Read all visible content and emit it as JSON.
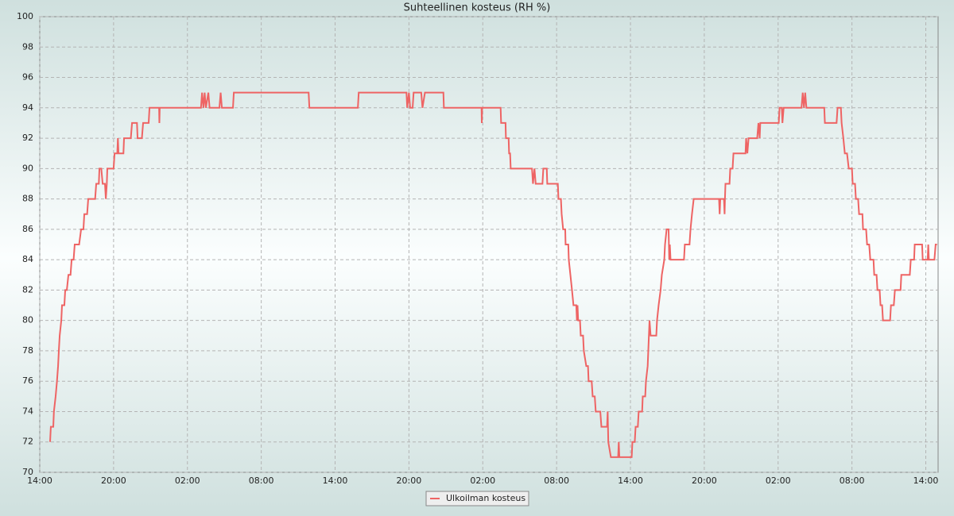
{
  "chart_data": {
    "type": "line",
    "title": "Suhteellinen kosteus (RH %)",
    "x": [
      0.84,
      0.9,
      1.1,
      1.15,
      1.29,
      1.4,
      1.49,
      1.55,
      1.62,
      1.75,
      1.81,
      2.0,
      2.07,
      2.2,
      2.33,
      2.5,
      2.59,
      2.75,
      2.84,
      3.2,
      3.36,
      3.55,
      3.62,
      3.85,
      3.94,
      4.5,
      4.59,
      4.8,
      4.85,
      5.0,
      5.11,
      5.3,
      5.37,
      5.45,
      5.49,
      6.0,
      6.08,
      6.3,
      6.35,
      6.4,
      6.8,
      6.85,
      7.4,
      7.5,
      7.9,
      7.95,
      8.3,
      8.4,
      8.85,
      8.92,
      9.7,
      9.72,
      9.75,
      13.1,
      13.19,
      13.3,
      13.4,
      13.5,
      13.7,
      13.8,
      14.6,
      14.7,
      14.8,
      15.7,
      15.77,
      21.85,
      21.91,
      25.85,
      25.92,
      29.8,
      29.86,
      30.0,
      30.1,
      30.3,
      30.38,
      31.0,
      31.1,
      31.3,
      32.8,
      32.84,
      35.9,
      35.92,
      35.95,
      37.45,
      37.49,
      37.85,
      37.88,
      38.1,
      38.14,
      38.22,
      38.27,
      40.0,
      40.08,
      40.2,
      40.3,
      40.85,
      40.92,
      41.2,
      41.24,
      42.1,
      42.15,
      42.35,
      42.41,
      42.53,
      42.7,
      42.73,
      42.95,
      42.99,
      43.12,
      43.25,
      43.37,
      43.6,
      43.65,
      43.7,
      43.75,
      43.9,
      43.96,
      44.15,
      44.21,
      44.41,
      44.55,
      44.6,
      44.85,
      44.93,
      45.1,
      45.18,
      45.55,
      45.64,
      46.1,
      46.15,
      46.2,
      46.41,
      47.0,
      47.05,
      47.1,
      48.1,
      48.16,
      48.35,
      48.42,
      48.6,
      48.67,
      48.95,
      49.0,
      49.2,
      49.26,
      49.4,
      49.45,
      49.55,
      49.64,
      50.1,
      50.16,
      50.29,
      50.45,
      50.55,
      50.75,
      50.81,
      50.94,
      51.1,
      51.15,
      51.2,
      51.26,
      52.35,
      52.42,
      52.8,
      52.88,
      53.0,
      53.14,
      55.2,
      55.25,
      55.3,
      55.6,
      55.65,
      55.68,
      55.72,
      56.05,
      56.11,
      56.3,
      56.37,
      57.35,
      57.4,
      57.5,
      57.6,
      58.3,
      58.4,
      58.5,
      58.55,
      60.05,
      60.12,
      60.3,
      60.35,
      60.45,
      61.9,
      62.0,
      62.1,
      62.2,
      62.3,
      63.75,
      63.8,
      64.75,
      64.83,
      65.1,
      65.16,
      65.3,
      65.42,
      65.6,
      65.74,
      66.0,
      66.06,
      66.25,
      66.32,
      66.5,
      66.58,
      66.85,
      66.9,
      67.15,
      67.23,
      67.4,
      67.49,
      67.75,
      67.81,
      68.0,
      68.07,
      68.25,
      68.32,
      68.45,
      68.52,
      69.1,
      69.17,
      69.4,
      69.49,
      69.95,
      70.01,
      70.7,
      70.78,
      71.05,
      71.1,
      71.7,
      71.75,
      72.15,
      72.2,
      72.25,
      72.7,
      72.8,
      72.91
    ],
    "series": [
      {
        "name": "Ulkoilman kosteus",
        "color": "#ee6464",
        "values": [
          72,
          73,
          73,
          74,
          75,
          76,
          77,
          78,
          79,
          80,
          81,
          81,
          82,
          82,
          83,
          83,
          84,
          84,
          85,
          85,
          86,
          86,
          87,
          87,
          88,
          88,
          89,
          89,
          90,
          90,
          89,
          89,
          88,
          89,
          90,
          90,
          91,
          91,
          92,
          91,
          91,
          92,
          92,
          93,
          93,
          92,
          92,
          93,
          93,
          94,
          94,
          93,
          94,
          94,
          95,
          94,
          95,
          94,
          95,
          94,
          94,
          95,
          94,
          94,
          95,
          95,
          94,
          94,
          95,
          95,
          94,
          95,
          94,
          94,
          95,
          95,
          94,
          95,
          95,
          94,
          94,
          93,
          94,
          94,
          93,
          93,
          92,
          92,
          91,
          91,
          90,
          90,
          89,
          90,
          89,
          89,
          90,
          90,
          89,
          89,
          88,
          88,
          87,
          86,
          86,
          85,
          85,
          84,
          83,
          82,
          81,
          81,
          80,
          81,
          80,
          80,
          79,
          79,
          78,
          77,
          77,
          76,
          76,
          75,
          75,
          74,
          74,
          73,
          73,
          74,
          72,
          71,
          71,
          72,
          71,
          71,
          72,
          72,
          73,
          73,
          74,
          74,
          75,
          75,
          76,
          77,
          78,
          80,
          79,
          79,
          80,
          81,
          82,
          83,
          84,
          85,
          86,
          86,
          84,
          85,
          84,
          84,
          85,
          85,
          86,
          87,
          88,
          88,
          87,
          88,
          88,
          87,
          88,
          89,
          89,
          90,
          90,
          91,
          91,
          92,
          91,
          92,
          92,
          93,
          92,
          93,
          93,
          94,
          94,
          93,
          94,
          94,
          95,
          94,
          95,
          94,
          94,
          93,
          93,
          94,
          94,
          93,
          92,
          91,
          91,
          90,
          90,
          89,
          89,
          88,
          88,
          87,
          87,
          86,
          86,
          85,
          85,
          84,
          84,
          83,
          83,
          82,
          82,
          81,
          81,
          80,
          80,
          81,
          81,
          82,
          82,
          83,
          83,
          84,
          84,
          85,
          85,
          84,
          84,
          85,
          84,
          84,
          85,
          85
        ]
      }
    ],
    "xlim": [
      0,
      73
    ],
    "ylim": [
      70,
      100
    ],
    "xticks": [
      {
        "value": 0,
        "label": "14:00"
      },
      {
        "value": 6,
        "label": "20:00"
      },
      {
        "value": 12,
        "label": "02:00"
      },
      {
        "value": 18,
        "label": "08:00"
      },
      {
        "value": 24,
        "label": "14:00"
      },
      {
        "value": 30,
        "label": "20:00"
      },
      {
        "value": 36,
        "label": "02:00"
      },
      {
        "value": 42,
        "label": "08:00"
      },
      {
        "value": 48,
        "label": "14:00"
      },
      {
        "value": 54,
        "label": "20:00"
      },
      {
        "value": 60,
        "label": "02:00"
      },
      {
        "value": 66,
        "label": "08:00"
      },
      {
        "value": 72,
        "label": "14:00"
      }
    ],
    "yticks": [
      70,
      72,
      74,
      76,
      78,
      80,
      82,
      84,
      86,
      88,
      90,
      92,
      94,
      96,
      98,
      100
    ],
    "grid": true
  }
}
